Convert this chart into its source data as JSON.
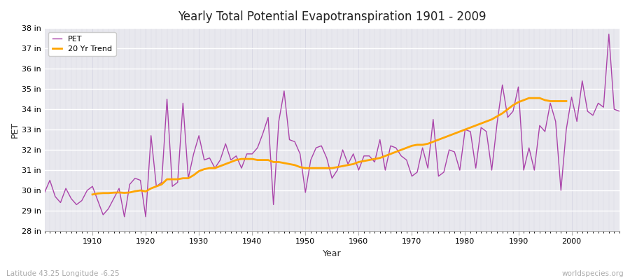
{
  "title": "Yearly Total Potential Evapotranspiration 1901 - 2009",
  "xlabel": "Year",
  "ylabel": "PET",
  "subtitle_left": "Latitude 43.25 Longitude -6.25",
  "subtitle_right": "worldspecies.org",
  "pet_color": "#AA44AA",
  "trend_color": "#FFA500",
  "ylim_min": 28,
  "ylim_max": 38,
  "ytick_labels": [
    "28 in",
    "29 in",
    "30 in",
    "31 in",
    "32 in",
    "33 in",
    "34 in",
    "35 in",
    "36 in",
    "37 in",
    "38 in"
  ],
  "ytick_values": [
    28,
    29,
    30,
    31,
    32,
    33,
    34,
    35,
    36,
    37,
    38
  ],
  "years": [
    1901,
    1902,
    1903,
    1904,
    1905,
    1906,
    1907,
    1908,
    1909,
    1910,
    1911,
    1912,
    1913,
    1914,
    1915,
    1916,
    1917,
    1918,
    1919,
    1920,
    1921,
    1922,
    1923,
    1924,
    1925,
    1926,
    1927,
    1928,
    1929,
    1930,
    1931,
    1932,
    1933,
    1934,
    1935,
    1936,
    1937,
    1938,
    1939,
    1940,
    1941,
    1942,
    1943,
    1944,
    1945,
    1946,
    1947,
    1948,
    1949,
    1950,
    1951,
    1952,
    1953,
    1954,
    1955,
    1956,
    1957,
    1958,
    1959,
    1960,
    1961,
    1962,
    1963,
    1964,
    1965,
    1966,
    1967,
    1968,
    1969,
    1970,
    1971,
    1972,
    1973,
    1974,
    1975,
    1976,
    1977,
    1978,
    1979,
    1980,
    1981,
    1982,
    1983,
    1984,
    1985,
    1986,
    1987,
    1988,
    1989,
    1990,
    1991,
    1992,
    1993,
    1994,
    1995,
    1996,
    1997,
    1998,
    1999,
    2000,
    2001,
    2002,
    2003,
    2004,
    2005,
    2006,
    2007,
    2008,
    2009
  ],
  "pet_values": [
    29.9,
    30.5,
    29.7,
    29.4,
    30.1,
    29.6,
    29.3,
    29.5,
    30.0,
    30.2,
    29.5,
    28.8,
    29.1,
    29.6,
    30.1,
    28.7,
    30.3,
    30.6,
    30.5,
    28.7,
    32.7,
    30.2,
    30.4,
    34.5,
    30.2,
    30.4,
    34.3,
    30.6,
    31.8,
    32.7,
    31.5,
    31.6,
    31.1,
    31.5,
    32.3,
    31.5,
    31.7,
    31.1,
    31.8,
    31.8,
    32.1,
    32.8,
    33.6,
    29.3,
    33.4,
    34.9,
    32.5,
    32.4,
    31.8,
    29.9,
    31.5,
    32.1,
    32.2,
    31.6,
    30.6,
    31.0,
    32.0,
    31.3,
    31.8,
    31.0,
    31.7,
    31.7,
    31.4,
    32.5,
    31.0,
    32.2,
    32.1,
    31.7,
    31.5,
    30.7,
    30.9,
    32.1,
    31.1,
    33.5,
    30.7,
    30.9,
    32.0,
    31.9,
    31.0,
    33.0,
    32.9,
    31.1,
    33.1,
    32.9,
    31.0,
    33.3,
    35.2,
    33.6,
    33.9,
    35.1,
    31.0,
    32.1,
    31.0,
    33.2,
    32.9,
    34.3,
    33.4,
    30.0,
    33.0,
    34.6,
    33.4,
    35.4,
    33.9,
    33.7,
    34.3,
    34.1,
    37.7,
    34.0,
    33.9
  ],
  "trend_values": [
    null,
    null,
    null,
    null,
    null,
    null,
    null,
    null,
    null,
    29.8,
    29.85,
    29.87,
    29.87,
    29.89,
    29.9,
    29.88,
    29.9,
    29.96,
    30.0,
    29.95,
    30.1,
    30.2,
    30.3,
    30.55,
    30.55,
    30.55,
    30.6,
    30.6,
    30.75,
    30.95,
    31.05,
    31.1,
    31.1,
    31.2,
    31.3,
    31.4,
    31.5,
    31.55,
    31.55,
    31.55,
    31.5,
    31.5,
    31.5,
    31.4,
    31.4,
    31.35,
    31.3,
    31.25,
    31.15,
    31.1,
    31.1,
    31.1,
    31.1,
    31.1,
    31.1,
    31.15,
    31.2,
    31.25,
    31.3,
    31.4,
    31.45,
    31.5,
    31.55,
    31.6,
    31.7,
    31.8,
    31.9,
    32.0,
    32.1,
    32.2,
    32.25,
    32.25,
    32.3,
    32.4,
    32.5,
    32.6,
    32.7,
    32.8,
    32.9,
    33.0,
    33.1,
    33.2,
    33.3,
    33.4,
    33.5,
    33.65,
    33.8,
    34.0,
    34.2,
    34.35,
    34.45,
    34.55,
    34.55,
    34.55,
    34.45,
    34.4,
    34.4,
    34.4,
    34.4
  ],
  "bg_color": "#ffffff",
  "plot_bg_color": "#e8e8ee",
  "grid_color": "#ccccdd",
  "xtick_years": [
    1910,
    1920,
    1930,
    1940,
    1950,
    1960,
    1970,
    1980,
    1990,
    2000
  ]
}
